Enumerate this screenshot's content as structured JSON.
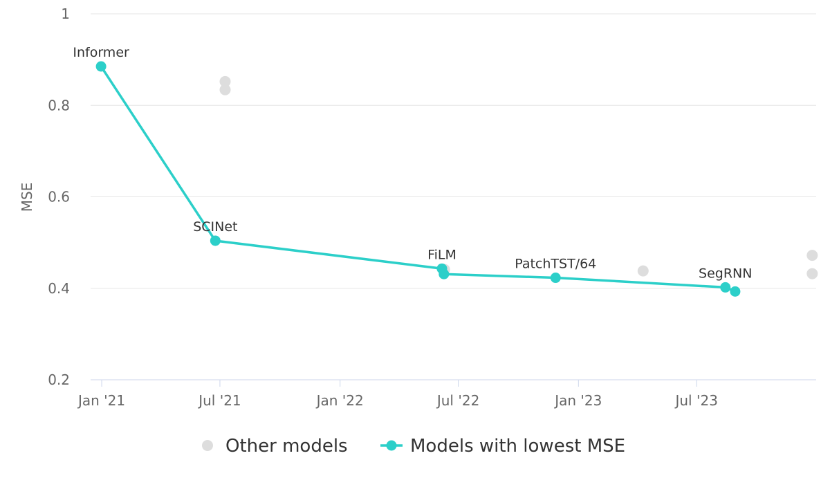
{
  "chart_data": {
    "type": "scatter",
    "ylabel": "MSE",
    "xlabel": "",
    "ylim": [
      0.2,
      1.0
    ],
    "xlim": [
      "2020-12-15",
      "2023-12-31"
    ],
    "y_ticks": [
      "0.2",
      "0.4",
      "0.6",
      "0.8",
      "1"
    ],
    "x_ticks": [
      {
        "date": "2021-01-01",
        "label": "Jan '21"
      },
      {
        "date": "2021-07-01",
        "label": "Jul '21"
      },
      {
        "date": "2022-01-01",
        "label": "Jan '22"
      },
      {
        "date": "2022-07-01",
        "label": "Jul '22"
      },
      {
        "date": "2023-01-01",
        "label": "Jan '23"
      },
      {
        "date": "2023-07-01",
        "label": "Jul '23"
      }
    ],
    "grid": true,
    "legend_position": "bottom-center",
    "series": [
      {
        "name": "Other models",
        "color": "#dddddd",
        "points": [
          {
            "x": "2021-07-09",
            "y": 0.852
          },
          {
            "x": "2021-07-09",
            "y": 0.834
          },
          {
            "x": "2022-06-10",
            "y": 0.441
          },
          {
            "x": "2023-04-10",
            "y": 0.438
          },
          {
            "x": "2023-12-25",
            "y": 0.472
          },
          {
            "x": "2023-12-25",
            "y": 0.432
          }
        ]
      },
      {
        "name": "Models with lowest MSE",
        "color": "#2ccfc9",
        "points": [
          {
            "x": "2020-12-31",
            "y": 0.885,
            "label": "Informer"
          },
          {
            "x": "2021-06-24",
            "y": 0.504,
            "label": "SCINet"
          },
          {
            "x": "2022-06-06",
            "y": 0.443,
            "label": "FiLM"
          },
          {
            "x": "2022-06-09",
            "y": 0.431,
            "label": ""
          },
          {
            "x": "2022-11-27",
            "y": 0.423,
            "label": "PatchTST/64"
          },
          {
            "x": "2023-08-14",
            "y": 0.402,
            "label": "SegRNN"
          },
          {
            "x": "2023-08-29",
            "y": 0.393,
            "label": ""
          }
        ]
      }
    ]
  }
}
